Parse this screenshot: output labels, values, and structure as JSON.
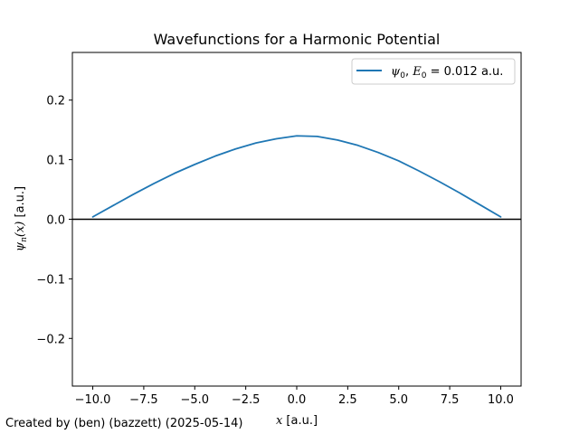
{
  "chart_data": {
    "type": "line",
    "title": "Wavefunctions for a Harmonic Potential",
    "xlabel": {
      "var": "x",
      "unit": " [a.u.]"
    },
    "ylabel": {
      "func": "ψ",
      "sub": "n",
      "arg": "(x)",
      "unit": " [a.u.]"
    },
    "xlim": [
      -11.0,
      11.0
    ],
    "ylim": [
      -0.28,
      0.28
    ],
    "xticks": [
      -10.0,
      -7.5,
      -5.0,
      -2.5,
      0.0,
      2.5,
      5.0,
      7.5,
      10.0
    ],
    "xtick_labels": [
      "−10.0",
      "−7.5",
      "−5.0",
      "−2.5",
      "0.0",
      "2.5",
      "5.0",
      "7.5",
      "10.0"
    ],
    "yticks": [
      -0.2,
      -0.1,
      0.0,
      0.1,
      0.2
    ],
    "ytick_labels": [
      "−0.2",
      "−0.1",
      "0.0",
      "0.1",
      "0.2"
    ],
    "grid": false,
    "legend_placement": "top-right",
    "zero_line": {
      "y": 0.0,
      "color": "#000000"
    },
    "series": [
      {
        "name": "ψ0, E0 = 0.012 a.u.",
        "legend_parts": {
          "psi": "ψ",
          "psi_sub": "0",
          "sep": ", ",
          "e": "E",
          "e_sub": "0",
          "value": " = 0.012 a.u."
        },
        "color": "#1f77b4",
        "x": [
          -10.0,
          -9.0,
          -8.0,
          -7.0,
          -6.0,
          -5.0,
          -4.0,
          -3.0,
          -2.0,
          -1.0,
          0.0,
          1.0,
          2.0,
          3.0,
          4.0,
          5.0,
          6.0,
          7.0,
          8.0,
          9.0,
          10.0
        ],
        "y": [
          0.004,
          0.023,
          0.042,
          0.06,
          0.077,
          0.092,
          0.106,
          0.118,
          0.128,
          0.135,
          0.14,
          0.139,
          0.133,
          0.124,
          0.112,
          0.098,
          0.081,
          0.063,
          0.044,
          0.024,
          0.004
        ]
      }
    ]
  },
  "credit": "Created by (ben) (bazzett) (2025-05-14)"
}
